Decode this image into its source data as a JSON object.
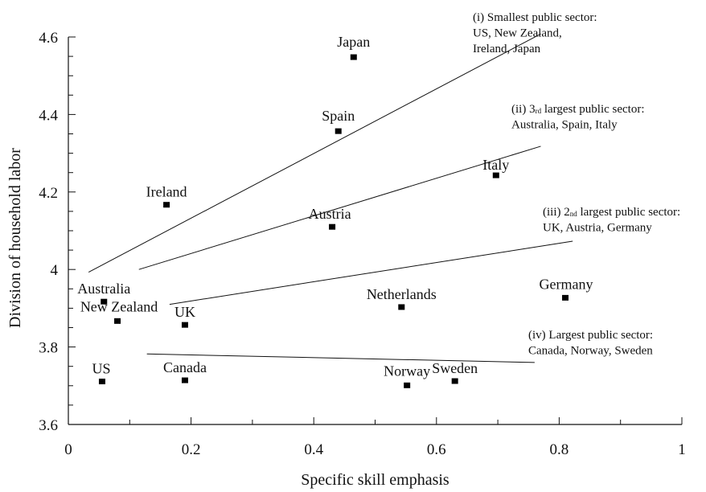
{
  "chart_data": {
    "type": "scatter",
    "xlabel": "Specific skill emphasis",
    "ylabel": "Division of household labor",
    "xlim": [
      0,
      1
    ],
    "ylim": [
      3.6,
      4.6
    ],
    "x_ticks": [
      0,
      0.2,
      0.4,
      0.6,
      0.8,
      1
    ],
    "x_tick_labels": [
      "0",
      "0.2",
      "0.4",
      "0.6",
      "0.8",
      "1"
    ],
    "x_minor_step": 0.1,
    "y_ticks": [
      3.6,
      3.8,
      4,
      4.2,
      4.4,
      4.6
    ],
    "y_tick_labels": [
      "3.6",
      "3.8",
      "4",
      "4.2",
      "4.4",
      "4.6"
    ],
    "y_minor_step": 0.05,
    "grid": false,
    "points": [
      {
        "label": "Japan",
        "x": 0.465,
        "y": 4.548
      },
      {
        "label": "Spain",
        "x": 0.44,
        "y": 4.357
      },
      {
        "label": "Italy",
        "x": 0.697,
        "y": 4.243
      },
      {
        "label": "Ireland",
        "x": 0.16,
        "y": 4.167
      },
      {
        "label": "Austria",
        "x": 0.43,
        "y": 4.11
      },
      {
        "label": "Australia",
        "x": 0.058,
        "y": 3.917
      },
      {
        "label": "New Zealand",
        "x": 0.08,
        "y": 3.867
      },
      {
        "label": "UK",
        "x": 0.19,
        "y": 3.857
      },
      {
        "label": "Netherlands",
        "x": 0.543,
        "y": 3.903
      },
      {
        "label": "Germany",
        "x": 0.81,
        "y": 3.927
      },
      {
        "label": "US",
        "x": 0.055,
        "y": 3.711
      },
      {
        "label": "Canada",
        "x": 0.19,
        "y": 3.714
      },
      {
        "label": "Norway",
        "x": 0.552,
        "y": 3.701
      },
      {
        "label": "Sweden",
        "x": 0.63,
        "y": 3.712
      }
    ],
    "fit_lines": [
      {
        "x": [
          0.033,
          0.77
        ],
        "y": [
          3.993,
          4.608
        ]
      },
      {
        "x": [
          0.115,
          0.77
        ],
        "y": [
          4.0,
          4.318
        ]
      },
      {
        "x": [
          0.165,
          0.822
        ],
        "y": [
          3.91,
          4.073
        ]
      },
      {
        "x": [
          0.128,
          0.76
        ],
        "y": [
          3.782,
          3.76
        ]
      }
    ],
    "annotations": [
      {
        "lines": [
          [
            {
              "t": "(i) Smallest public sector:"
            }
          ],
          [
            {
              "t": "US, New Zealand,"
            }
          ],
          [
            {
              "t": "Ireland, Japan"
            }
          ]
        ]
      },
      {
        "lines": [
          [
            {
              "t": "(ii) 3"
            },
            {
              "t": "rd",
              "sup": true
            },
            {
              "t": " largest public sector:"
            }
          ],
          [
            {
              "t": "Australia,  Spain, Italy"
            }
          ]
        ]
      },
      {
        "lines": [
          [
            {
              "t": "(iii) 2"
            },
            {
              "t": "nd",
              "sup": true
            },
            {
              "t": " largest public sector:"
            }
          ],
          [
            {
              "t": "UK, Austria, Germany"
            }
          ]
        ]
      },
      {
        "lines": [
          [
            {
              "t": "(iv) Largest public sector:"
            }
          ],
          [
            {
              "t": "Canada, Norway, Sweden"
            }
          ]
        ]
      }
    ]
  }
}
